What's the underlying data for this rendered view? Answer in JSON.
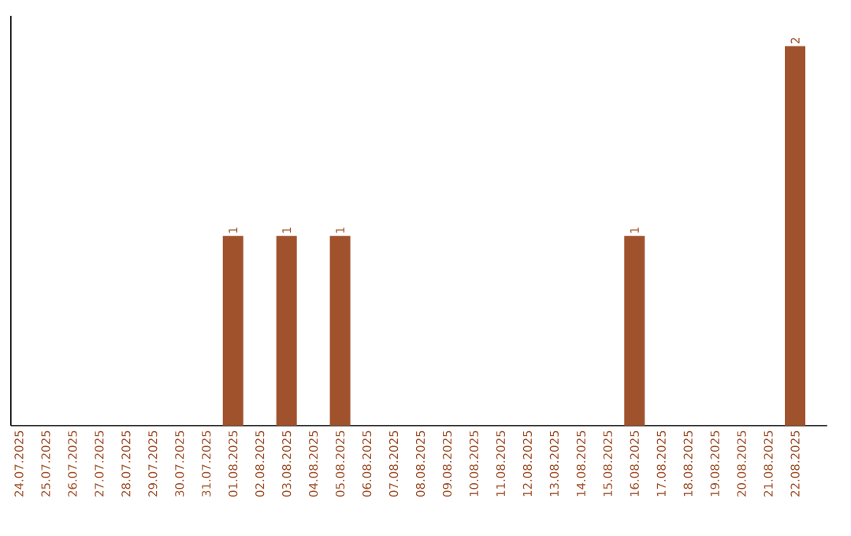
{
  "chart_data": {
    "type": "bar",
    "relative": false,
    "categories": [
      "24.07.2025",
      "25.07.2025",
      "26.07.2025",
      "27.07.2025",
      "28.07.2025",
      "29.07.2025",
      "30.07.2025",
      "31.07.2025",
      "01.08.2025",
      "02.08.2025",
      "03.08.2025",
      "04.08.2025",
      "05.08.2025",
      "06.08.2025",
      "07.08.2025",
      "08.08.2025",
      "09.08.2025",
      "10.08.2025",
      "11.08.2025",
      "12.08.2025",
      "13.08.2025",
      "14.08.2025",
      "15.08.2025",
      "16.08.2025",
      "17.08.2025",
      "18.08.2025",
      "19.08.2025",
      "20.08.2025",
      "21.08.2025",
      "22.08.2025"
    ],
    "values": [
      0,
      0,
      0,
      0,
      0,
      0,
      0,
      0,
      1,
      0,
      1,
      0,
      1,
      0,
      0,
      0,
      0,
      0,
      0,
      0,
      0,
      0,
      0,
      1,
      0,
      0,
      0,
      0,
      0,
      2
    ],
    "value_labels": [
      null,
      null,
      null,
      null,
      null,
      null,
      null,
      null,
      "1",
      null,
      "1",
      null,
      "1",
      null,
      null,
      null,
      null,
      null,
      null,
      null,
      null,
      null,
      null,
      "1",
      null,
      null,
      null,
      null,
      null,
      "2"
    ],
    "color": "#a0522d"
  }
}
